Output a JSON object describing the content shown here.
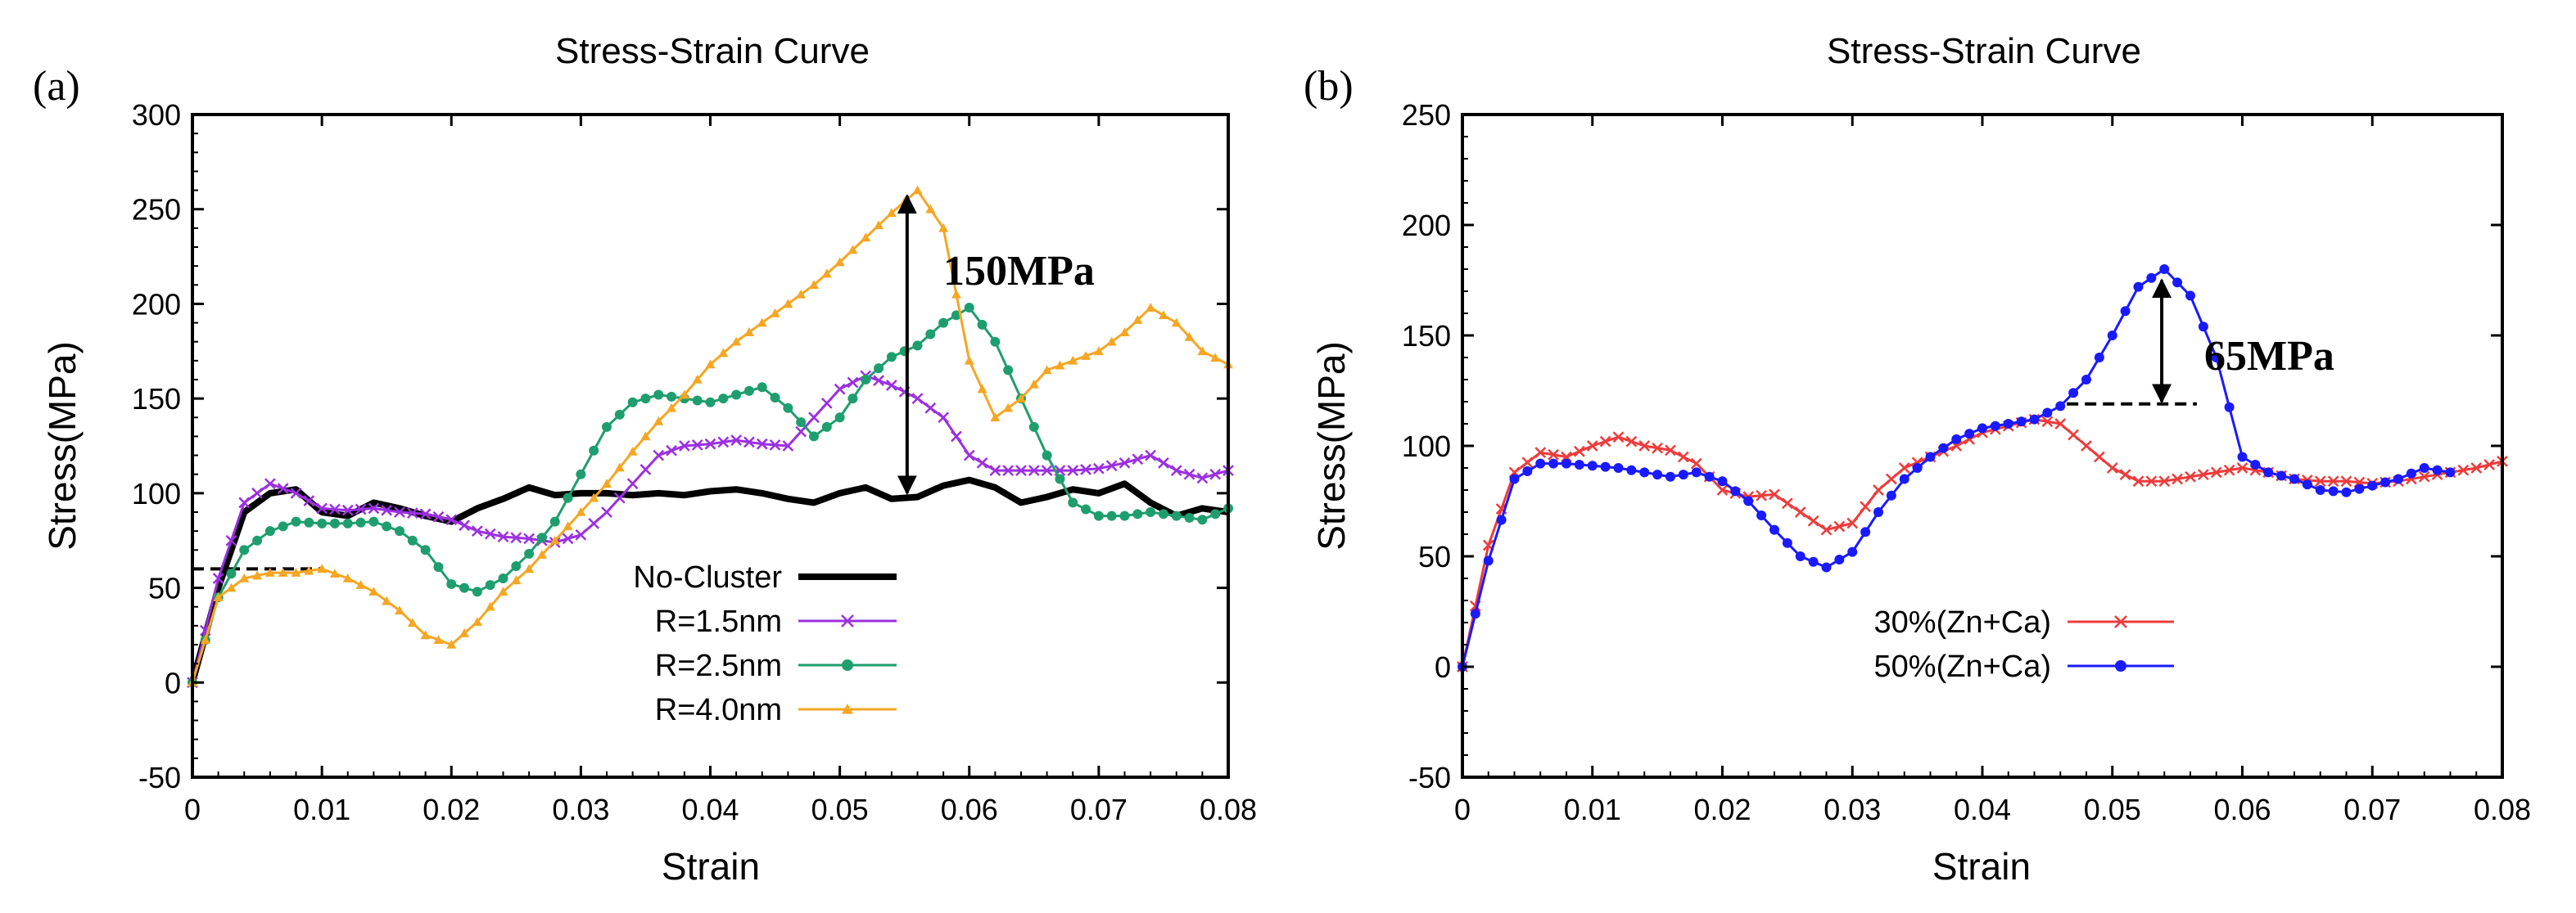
{
  "colors": {
    "no_cluster": "#000000",
    "r15": "#9b30e0",
    "r25": "#1e9e6e",
    "r40": "#f5a623",
    "p30": "#ee3b3b",
    "p50": "#1a1aff"
  },
  "chart_data": [
    {
      "panel_label": "(a)",
      "type": "line",
      "title": "Stress-Strain Curve",
      "xlabel": "Strain",
      "ylabel": "Stress(MPa)",
      "xlim": [
        0,
        0.08
      ],
      "ylim": [
        -50,
        300
      ],
      "xticks": [
        0,
        0.01,
        0.02,
        0.03,
        0.04,
        0.05,
        0.06,
        0.07,
        0.08
      ],
      "xtick_labels": [
        "0",
        "0.01",
        "0.02",
        "0.03",
        "0.04",
        "0.05",
        "0.06",
        "0.07",
        "0.08"
      ],
      "yticks": [
        -50,
        0,
        50,
        100,
        150,
        200,
        250,
        300
      ],
      "ytick_labels": [
        "-50",
        "0",
        "50",
        "100",
        "150",
        "200",
        "250",
        "300"
      ],
      "legend_position": "bottom-center",
      "series": [
        {
          "name": "No-Cluster",
          "color_key": "no_cluster",
          "marker": "none",
          "width": "thick",
          "x": [
            0,
            0.002,
            0.004,
            0.006,
            0.008,
            0.01,
            0.012,
            0.014,
            0.016,
            0.018,
            0.02,
            0.022,
            0.024,
            0.026,
            0.028,
            0.03,
            0.032,
            0.034,
            0.036,
            0.038,
            0.04,
            0.042,
            0.044,
            0.046,
            0.048,
            0.05,
            0.052,
            0.054,
            0.056,
            0.058,
            0.06,
            0.062,
            0.064,
            0.066,
            0.068,
            0.07,
            0.072,
            0.074,
            0.076,
            0.078,
            0.08
          ],
          "y": [
            0,
            50,
            90,
            100,
            102,
            90,
            88,
            95,
            92,
            88,
            85,
            92,
            97,
            103,
            99,
            100,
            100,
            99,
            100,
            99,
            101,
            102,
            100,
            97,
            95,
            100,
            103,
            97,
            98,
            104,
            107,
            103,
            95,
            98,
            102,
            100,
            105,
            95,
            88,
            92,
            90
          ]
        },
        {
          "name": "R=1.5nm",
          "color_key": "r15",
          "marker": "x",
          "width": "thin",
          "x": [
            0,
            0.002,
            0.004,
            0.006,
            0.008,
            0.01,
            0.012,
            0.014,
            0.016,
            0.018,
            0.02,
            0.022,
            0.024,
            0.026,
            0.028,
            0.03,
            0.032,
            0.034,
            0.036,
            0.038,
            0.04,
            0.042,
            0.044,
            0.046,
            0.048,
            0.05,
            0.052,
            0.054,
            0.056,
            0.058,
            0.06,
            0.062,
            0.064,
            0.066,
            0.068,
            0.07,
            0.072,
            0.074,
            0.076,
            0.078,
            0.08
          ],
          "y": [
            0,
            55,
            95,
            105,
            100,
            92,
            91,
            92,
            90,
            89,
            86,
            80,
            77,
            76,
            74,
            78,
            90,
            105,
            120,
            125,
            126,
            128,
            126,
            125,
            140,
            155,
            162,
            157,
            150,
            140,
            120,
            112,
            112,
            112,
            112,
            113,
            116,
            120,
            112,
            108,
            112
          ]
        },
        {
          "name": "R=2.5nm",
          "color_key": "r25",
          "marker": "circle",
          "width": "thin",
          "x": [
            0,
            0.002,
            0.004,
            0.006,
            0.008,
            0.01,
            0.012,
            0.014,
            0.016,
            0.018,
            0.02,
            0.022,
            0.024,
            0.026,
            0.028,
            0.03,
            0.032,
            0.034,
            0.036,
            0.038,
            0.04,
            0.042,
            0.044,
            0.046,
            0.048,
            0.05,
            0.052,
            0.054,
            0.056,
            0.058,
            0.06,
            0.062,
            0.064,
            0.066,
            0.068,
            0.07,
            0.072,
            0.074,
            0.076,
            0.078,
            0.08
          ],
          "y": [
            0,
            45,
            70,
            80,
            85,
            84,
            84,
            85,
            80,
            70,
            52,
            48,
            55,
            68,
            85,
            110,
            135,
            148,
            152,
            150,
            148,
            152,
            156,
            145,
            130,
            140,
            160,
            172,
            178,
            190,
            198,
            180,
            150,
            120,
            95,
            88,
            88,
            90,
            88,
            86,
            92
          ]
        },
        {
          "name": "R=4.0nm",
          "color_key": "r40",
          "marker": "triangle",
          "width": "thin",
          "x": [
            0,
            0.002,
            0.004,
            0.006,
            0.008,
            0.01,
            0.012,
            0.014,
            0.016,
            0.018,
            0.02,
            0.022,
            0.024,
            0.026,
            0.028,
            0.03,
            0.032,
            0.034,
            0.036,
            0.038,
            0.04,
            0.042,
            0.044,
            0.046,
            0.048,
            0.05,
            0.052,
            0.054,
            0.056,
            0.058,
            0.06,
            0.062,
            0.064,
            0.066,
            0.068,
            0.07,
            0.072,
            0.074,
            0.076,
            0.078,
            0.08
          ],
          "y": [
            0,
            45,
            55,
            58,
            58,
            60,
            55,
            48,
            38,
            25,
            20,
            32,
            48,
            60,
            75,
            90,
            105,
            122,
            138,
            152,
            168,
            180,
            190,
            200,
            210,
            222,
            235,
            248,
            260,
            240,
            170,
            140,
            150,
            165,
            170,
            175,
            185,
            198,
            190,
            175,
            168
          ]
        }
      ],
      "annotations": [
        {
          "text": "150MPa",
          "x": 0.0575,
          "y": 200
        }
      ],
      "arrows": [
        {
          "x": 0.0552,
          "y_from": 100,
          "y_to": 257,
          "style": "double"
        }
      ],
      "reference_lines": [
        {
          "x_from": 0,
          "x_to": 0.01,
          "y": 60,
          "style": "dashed"
        }
      ]
    },
    {
      "panel_label": "(b)",
      "type": "line",
      "title": "Stress-Strain Curve",
      "xlabel": "Strain",
      "ylabel": "Stress(MPa)",
      "xlim": [
        0,
        0.08
      ],
      "ylim": [
        -50,
        250
      ],
      "xticks": [
        0,
        0.01,
        0.02,
        0.03,
        0.04,
        0.05,
        0.06,
        0.07,
        0.08
      ],
      "xtick_labels": [
        "0",
        "0.01",
        "0.02",
        "0.03",
        "0.04",
        "0.05",
        "0.06",
        "0.07",
        "0.08"
      ],
      "yticks": [
        -50,
        0,
        50,
        100,
        150,
        200,
        250
      ],
      "ytick_labels": [
        "-50",
        "0",
        "50",
        "100",
        "150",
        "200",
        "250"
      ],
      "legend_position": "bottom-center",
      "series": [
        {
          "name": "30%(Zn+Ca)",
          "color_key": "p30",
          "marker": "x",
          "width": "thin",
          "x": [
            0,
            0.002,
            0.004,
            0.006,
            0.008,
            0.01,
            0.012,
            0.014,
            0.016,
            0.018,
            0.02,
            0.022,
            0.024,
            0.026,
            0.028,
            0.03,
            0.032,
            0.034,
            0.036,
            0.038,
            0.04,
            0.042,
            0.044,
            0.046,
            0.048,
            0.05,
            0.052,
            0.054,
            0.056,
            0.058,
            0.06,
            0.062,
            0.064,
            0.066,
            0.068,
            0.07,
            0.072,
            0.074,
            0.076,
            0.078,
            0.08
          ],
          "y": [
            0,
            55,
            88,
            97,
            95,
            100,
            104,
            100,
            98,
            92,
            80,
            77,
            78,
            70,
            62,
            65,
            80,
            90,
            95,
            100,
            106,
            109,
            112,
            110,
            100,
            90,
            84,
            84,
            86,
            88,
            90,
            88,
            85,
            84,
            84,
            83,
            84,
            86,
            88,
            90,
            93
          ]
        },
        {
          "name": "50%(Zn+Ca)",
          "color_key": "p50",
          "marker": "circle",
          "width": "thin",
          "x": [
            0,
            0.002,
            0.004,
            0.006,
            0.008,
            0.01,
            0.012,
            0.014,
            0.016,
            0.018,
            0.02,
            0.022,
            0.024,
            0.026,
            0.028,
            0.03,
            0.032,
            0.034,
            0.036,
            0.038,
            0.04,
            0.042,
            0.044,
            0.046,
            0.048,
            0.05,
            0.052,
            0.054,
            0.056,
            0.058,
            0.06,
            0.062,
            0.064,
            0.066,
            0.068,
            0.07,
            0.072,
            0.074,
            0.076
          ],
          "y": [
            0,
            48,
            85,
            92,
            92,
            91,
            90,
            88,
            86,
            88,
            84,
            75,
            62,
            50,
            45,
            52,
            70,
            85,
            95,
            103,
            108,
            110,
            112,
            118,
            130,
            150,
            172,
            180,
            168,
            140,
            95,
            88,
            85,
            80,
            79,
            82,
            85,
            90,
            88
          ]
        }
      ],
      "annotations": [
        {
          "text": "65MPa",
          "x": 0.057,
          "y": 155
        }
      ],
      "arrows": [
        {
          "x": 0.0538,
          "y_from": 120,
          "y_to": 175,
          "style": "double"
        }
      ],
      "reference_lines": [
        {
          "x_from": 0.0465,
          "x_to": 0.0565,
          "y": 119,
          "style": "dashed"
        }
      ]
    }
  ]
}
